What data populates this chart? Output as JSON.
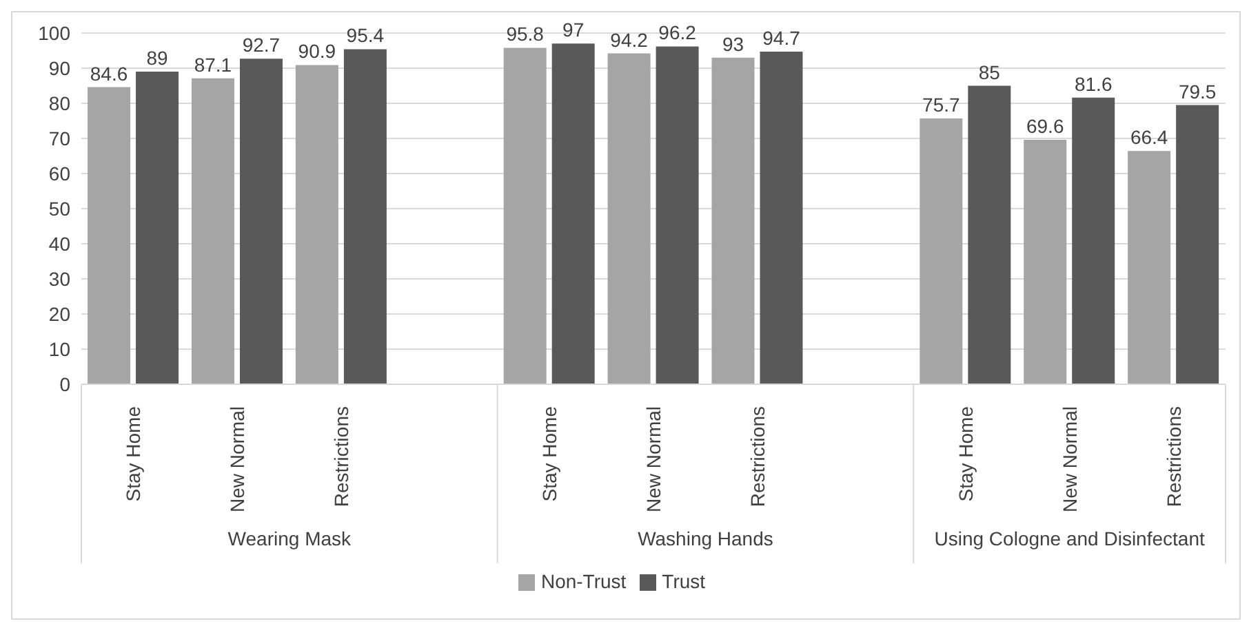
{
  "chart_data": {
    "type": "bar",
    "categories": [
      "Stay Home",
      "New Normal",
      "Restrictions",
      null,
      "Stay Home",
      "New Normal",
      "Restrictions",
      null,
      "Stay Home",
      "New Normal",
      "Restrictions"
    ],
    "series": [
      {
        "name": "Non-Trust",
        "color": "#a5a5a5",
        "values": [
          84.6,
          87.1,
          90.9,
          null,
          95.8,
          94.2,
          93,
          null,
          75.7,
          69.6,
          66.4
        ]
      },
      {
        "name": "Trust",
        "color": "#595959",
        "values": [
          89,
          92.7,
          95.4,
          null,
          97,
          96.2,
          94.7,
          null,
          85,
          81.6,
          79.5
        ]
      }
    ],
    "annotations": [
      "Wearing Mask",
      "Washing Hands",
      "Using Cologne and Disinfectant"
    ],
    "ylim": [
      0,
      100
    ],
    "yticks": [
      0,
      10,
      20,
      30,
      40,
      50,
      60,
      70,
      80,
      90,
      100
    ],
    "grid": "y",
    "legend": "bottom",
    "data_labels": true
  }
}
